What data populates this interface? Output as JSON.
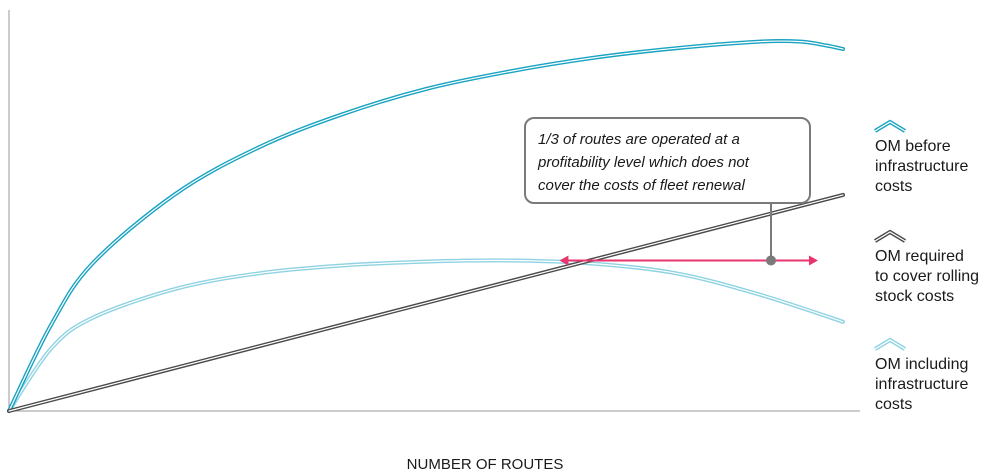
{
  "chart_data": {
    "type": "line",
    "title": "",
    "xlabel": "NUMBER OF ROUTES",
    "ylabel": "",
    "grid": false,
    "legend_placement": "right",
    "xlim": [
      0,
      100
    ],
    "ylim": [
      0,
      100
    ],
    "series": [
      {
        "name": "OM before infrastructure costs",
        "color": "#1aa3c2",
        "style": "double",
        "x": [
          0,
          5,
          10,
          20,
          30,
          40,
          50,
          60,
          70,
          80,
          90,
          95,
          98,
          100
        ],
        "y": [
          0,
          22,
          38,
          56,
          68,
          76.5,
          83,
          87.5,
          91,
          93.5,
          95.2,
          95.2,
          94.2,
          93.3
        ]
      },
      {
        "name": "OM required to cover rolling stock costs",
        "color": "#4a4a4a",
        "style": "double",
        "x": [
          0,
          100
        ],
        "y": [
          0,
          55.7
        ]
      },
      {
        "name": "OM including infrastructure costs",
        "color": "#8fd3e3",
        "style": "double",
        "x": [
          0,
          5,
          10,
          20,
          30,
          40,
          50,
          60,
          70,
          80,
          90,
          100
        ],
        "y": [
          0,
          16,
          24,
          31.5,
          35.5,
          37.5,
          38.5,
          38.8,
          38,
          35.5,
          30,
          23
        ]
      }
    ],
    "annotations": [
      {
        "text_lines": [
          "1/3 of routes are operated at a",
          "profitability level which does not",
          "cover the costs of fleet renewal"
        ],
        "arrow_x_range": [
          66,
          97
        ],
        "arrow_y": 38.8,
        "arrow_color": "#e8356d",
        "box_color": "#7a7a7a"
      }
    ],
    "legend": [
      {
        "lines": [
          "OM before",
          "infrastructure",
          "costs"
        ],
        "icon": "chevron-up-double",
        "color": "#1aa3c2"
      },
      {
        "lines": [
          "OM required",
          "to cover rolling",
          "stock costs"
        ],
        "icon": "chevron-up-double",
        "color": "#4a4a4a"
      },
      {
        "lines": [
          "OM including",
          "infrastructure",
          "costs"
        ],
        "icon": "chevron-up-double",
        "color": "#8fd3e3"
      }
    ]
  }
}
